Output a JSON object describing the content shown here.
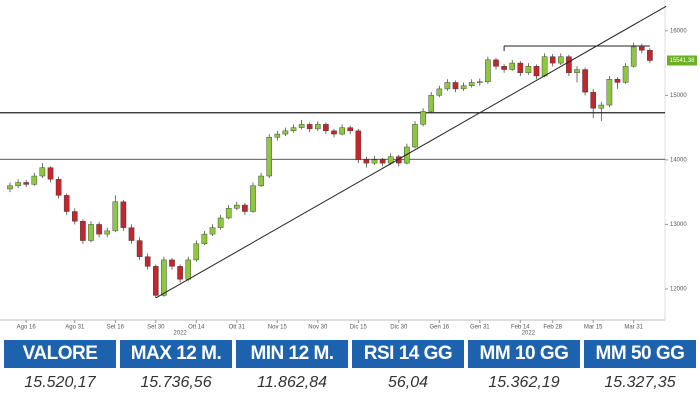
{
  "chart_data": {
    "type": "candlestick",
    "categories": [
      null,
      null,
      "Ago 16",
      null,
      null,
      null,
      null,
      null,
      "Ago 31",
      null,
      null,
      null,
      null,
      "Set 16",
      null,
      null,
      null,
      null,
      "Set 30",
      null,
      null,
      null,
      null,
      "Ott 14",
      null,
      null,
      null,
      null,
      "Ott 31",
      null,
      null,
      null,
      null,
      "Nov 15",
      null,
      null,
      null,
      null,
      "Nov 30",
      null,
      null,
      null,
      null,
      "Dic 15",
      null,
      null,
      null,
      null,
      "Dic 30",
      null,
      null,
      null,
      null,
      "Gen 16",
      null,
      null,
      null,
      null,
      "Gen 31",
      null,
      null,
      null,
      null,
      "Feb 14",
      null,
      null,
      null,
      "Feb 28",
      null,
      null,
      null,
      null,
      "Mar 15",
      null,
      null,
      null,
      null,
      "Mar 31",
      null,
      null
    ],
    "year_labels": [
      null,
      null,
      null,
      null,
      null,
      null,
      null,
      null,
      null,
      null,
      null,
      null,
      null,
      null,
      null,
      null,
      null,
      null,
      null,
      null,
      null,
      "2022",
      null,
      null,
      null,
      null,
      null,
      null,
      null,
      null,
      null,
      null,
      null,
      null,
      null,
      null,
      null,
      null,
      null,
      null,
      null,
      null,
      null,
      null,
      null,
      null,
      null,
      null,
      null,
      null,
      null,
      null,
      null,
      null,
      null,
      null,
      null,
      null,
      null,
      null,
      null,
      null,
      null,
      null,
      "2022",
      null,
      null,
      null,
      null,
      null,
      null,
      null,
      null,
      null,
      null,
      null,
      null,
      null,
      null,
      null
    ],
    "ohlc": [
      [
        13550,
        13650,
        13500,
        13600
      ],
      [
        13600,
        13700,
        13560,
        13650
      ],
      [
        13650,
        13690,
        13580,
        13620
      ],
      [
        13620,
        13800,
        13600,
        13750
      ],
      [
        13750,
        13950,
        13720,
        13880
      ],
      [
        13880,
        13900,
        13650,
        13700
      ],
      [
        13700,
        13740,
        13400,
        13450
      ],
      [
        13450,
        13480,
        13150,
        13200
      ],
      [
        13200,
        13250,
        13000,
        13050
      ],
      [
        13050,
        13080,
        12700,
        12750
      ],
      [
        12750,
        13050,
        12720,
        13000
      ],
      [
        13000,
        13040,
        12800,
        12850
      ],
      [
        12850,
        12950,
        12800,
        12900
      ],
      [
        12900,
        13450,
        12880,
        13350
      ],
      [
        13350,
        13380,
        12900,
        12950
      ],
      [
        12950,
        13000,
        12700,
        12750
      ],
      [
        12750,
        12800,
        12450,
        12500
      ],
      [
        12500,
        12550,
        12300,
        12350
      ],
      [
        12350,
        12380,
        11860,
        11900
      ],
      [
        11900,
        12500,
        11880,
        12450
      ],
      [
        12450,
        12480,
        12300,
        12350
      ],
      [
        12350,
        12380,
        12100,
        12150
      ],
      [
        12150,
        12500,
        12120,
        12450
      ],
      [
        12450,
        12750,
        12420,
        12700
      ],
      [
        12700,
        12900,
        12680,
        12850
      ],
      [
        12850,
        13000,
        12820,
        12950
      ],
      [
        12950,
        13150,
        12920,
        13100
      ],
      [
        13100,
        13300,
        13080,
        13250
      ],
      [
        13250,
        13350,
        13220,
        13300
      ],
      [
        13300,
        13330,
        13150,
        13200
      ],
      [
        13200,
        13650,
        13180,
        13600
      ],
      [
        13600,
        13800,
        13580,
        13750
      ],
      [
        13750,
        14400,
        13720,
        14350
      ],
      [
        14350,
        14450,
        14300,
        14400
      ],
      [
        14400,
        14500,
        14370,
        14450
      ],
      [
        14450,
        14550,
        14420,
        14500
      ],
      [
        14500,
        14620,
        14470,
        14550
      ],
      [
        14550,
        14580,
        14430,
        14480
      ],
      [
        14480,
        14600,
        14450,
        14550
      ],
      [
        14550,
        14580,
        14400,
        14450
      ],
      [
        14450,
        14480,
        14350,
        14400
      ],
      [
        14400,
        14550,
        14380,
        14500
      ],
      [
        14500,
        14530,
        14400,
        14450
      ],
      [
        14450,
        14480,
        13950,
        14000
      ],
      [
        14000,
        14050,
        13880,
        13950
      ],
      [
        13950,
        14060,
        13920,
        14000
      ],
      [
        14000,
        14030,
        13900,
        13950
      ],
      [
        13950,
        14100,
        13920,
        14050
      ],
      [
        14050,
        14080,
        13900,
        13950
      ],
      [
        13950,
        14250,
        13930,
        14200
      ],
      [
        14200,
        14600,
        14180,
        14550
      ],
      [
        14550,
        14800,
        14520,
        14750
      ],
      [
        14750,
        15050,
        14720,
        15000
      ],
      [
        15000,
        15150,
        14970,
        15100
      ],
      [
        15100,
        15250,
        15070,
        15200
      ],
      [
        15200,
        15230,
        15050,
        15100
      ],
      [
        15100,
        15200,
        15070,
        15150
      ],
      [
        15150,
        15250,
        15120,
        15200
      ],
      [
        15200,
        15260,
        15150,
        15210
      ],
      [
        15210,
        15600,
        15180,
        15550
      ],
      [
        15550,
        15580,
        15400,
        15450
      ],
      [
        15450,
        15480,
        15350,
        15400
      ],
      [
        15400,
        15550,
        15380,
        15500
      ],
      [
        15500,
        15530,
        15300,
        15350
      ],
      [
        15350,
        15500,
        15320,
        15450
      ],
      [
        15450,
        15480,
        15250,
        15300
      ],
      [
        15300,
        15650,
        15280,
        15600
      ],
      [
        15600,
        15640,
        15450,
        15500
      ],
      [
        15500,
        15650,
        15470,
        15600
      ],
      [
        15600,
        15630,
        15300,
        15350
      ],
      [
        15350,
        15450,
        15200,
        15400
      ],
      [
        15400,
        15430,
        15000,
        15050
      ],
      [
        15050,
        15100,
        14650,
        14800
      ],
      [
        14800,
        14900,
        14600,
        14850
      ],
      [
        14850,
        15300,
        14820,
        15250
      ],
      [
        15250,
        15280,
        15100,
        15200
      ],
      [
        15200,
        15500,
        15180,
        15450
      ],
      [
        15450,
        15820,
        15430,
        15750
      ],
      [
        15750,
        15800,
        15650,
        15700
      ],
      [
        15700,
        15730,
        15500,
        15540
      ]
    ],
    "up_color": "#8dc63f",
    "down_color": "#c1272d",
    "ylim": [
      11550,
      16400
    ],
    "yticks": [
      12000,
      13000,
      14000,
      15000,
      16000
    ],
    "hlines": [
      14730,
      14010
    ],
    "resistance": {
      "value": 15765,
      "from": 61,
      "to": 79
    },
    "trendline": {
      "x": [
        18,
        81
      ],
      "y": [
        11860,
        16380
      ]
    },
    "last_price_label": "15541,38"
  },
  "table": {
    "header": [
      "VALORE",
      "MAX 12 M.",
      "MIN 12 M.",
      "RSI 14 GG",
      "MM 10 GG",
      "MM 50 GG"
    ],
    "rows": [
      [
        "15.520,17",
        "15.736,56",
        "11.862,84",
        "56,04",
        "15.362,19",
        "15.327,35"
      ]
    ]
  }
}
